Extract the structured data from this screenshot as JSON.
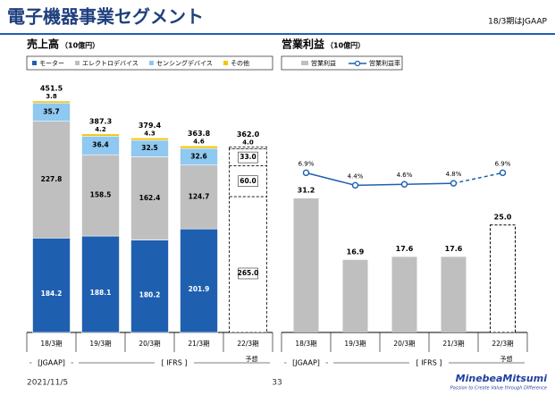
{
  "header": {
    "title": "電子機器事業セグメント",
    "note": "18/3期はJGAAP"
  },
  "footer": {
    "date": "2021/11/5",
    "page": "33",
    "logo": "MinebeaMitsumi",
    "tagline": "Passion to Create Value through Difference"
  },
  "chart_data": [
    {
      "type": "bar",
      "stacked": true,
      "title": "売上高",
      "unit": "（10億円）",
      "categories": [
        "18/3期",
        "19/3期",
        "20/3期",
        "21/3期",
        "22/3期"
      ],
      "category_notes": [
        null,
        null,
        null,
        null,
        "予想"
      ],
      "groups": [
        "[JGAAP]",
        "[ IFRS ]"
      ],
      "series": [
        {
          "name": "モーター",
          "color": "#1f5faf",
          "values": [
            184.2,
            188.1,
            180.2,
            201.9,
            265.0
          ],
          "value_labels": [
            "184.2",
            "188.1",
            "180.2",
            "201.9",
            "265.0"
          ]
        },
        {
          "name": "エレクトロデバイス",
          "color": "#bfbfbf",
          "values": [
            227.8,
            158.5,
            162.4,
            124.7,
            60.0
          ],
          "value_labels": [
            "227.8",
            "158.5",
            "162.4",
            "124.7",
            "60.0"
          ]
        },
        {
          "name": "センシングデバイス",
          "color": "#8fc8f0",
          "values": [
            35.7,
            36.4,
            32.5,
            32.6,
            33.0
          ],
          "value_labels": [
            "35.7",
            "36.4",
            "32.5",
            "32.6",
            "33.0"
          ]
        },
        {
          "name": "その他",
          "color": "#f5c400",
          "values": [
            3.8,
            4.2,
            4.3,
            4.6,
            4.0
          ],
          "value_labels": [
            "3.8",
            "4.2",
            "4.3",
            "4.6",
            "4.0"
          ]
        }
      ],
      "totals": [
        451.5,
        387.3,
        379.4,
        363.8,
        362.0
      ],
      "total_labels": [
        "451.5",
        "387.3",
        "379.4",
        "363.8",
        "362.0"
      ]
    },
    {
      "type": "bar-line",
      "title": "営業利益",
      "unit": "（10億円）",
      "categories": [
        "18/3期",
        "19/3期",
        "20/3期",
        "21/3期",
        "22/3期"
      ],
      "category_notes": [
        null,
        null,
        null,
        null,
        "予想"
      ],
      "groups": [
        "[JGAAP]",
        "[ IFRS ]"
      ],
      "series": [
        {
          "name": "営業利益",
          "color": "#bfbfbf",
          "values": [
            31.2,
            16.9,
            17.6,
            17.6,
            25.0
          ],
          "value_labels": [
            "31.2",
            "16.9",
            "17.6",
            "17.6",
            "25.0"
          ]
        },
        {
          "name": "営業利益率",
          "color": "#1f5faf",
          "values": [
            6.9,
            4.4,
            4.6,
            4.8,
            6.9
          ],
          "value_labels": [
            "6.9%",
            "4.4%",
            "4.6%",
            "4.8%",
            "6.9%"
          ]
        }
      ]
    }
  ]
}
